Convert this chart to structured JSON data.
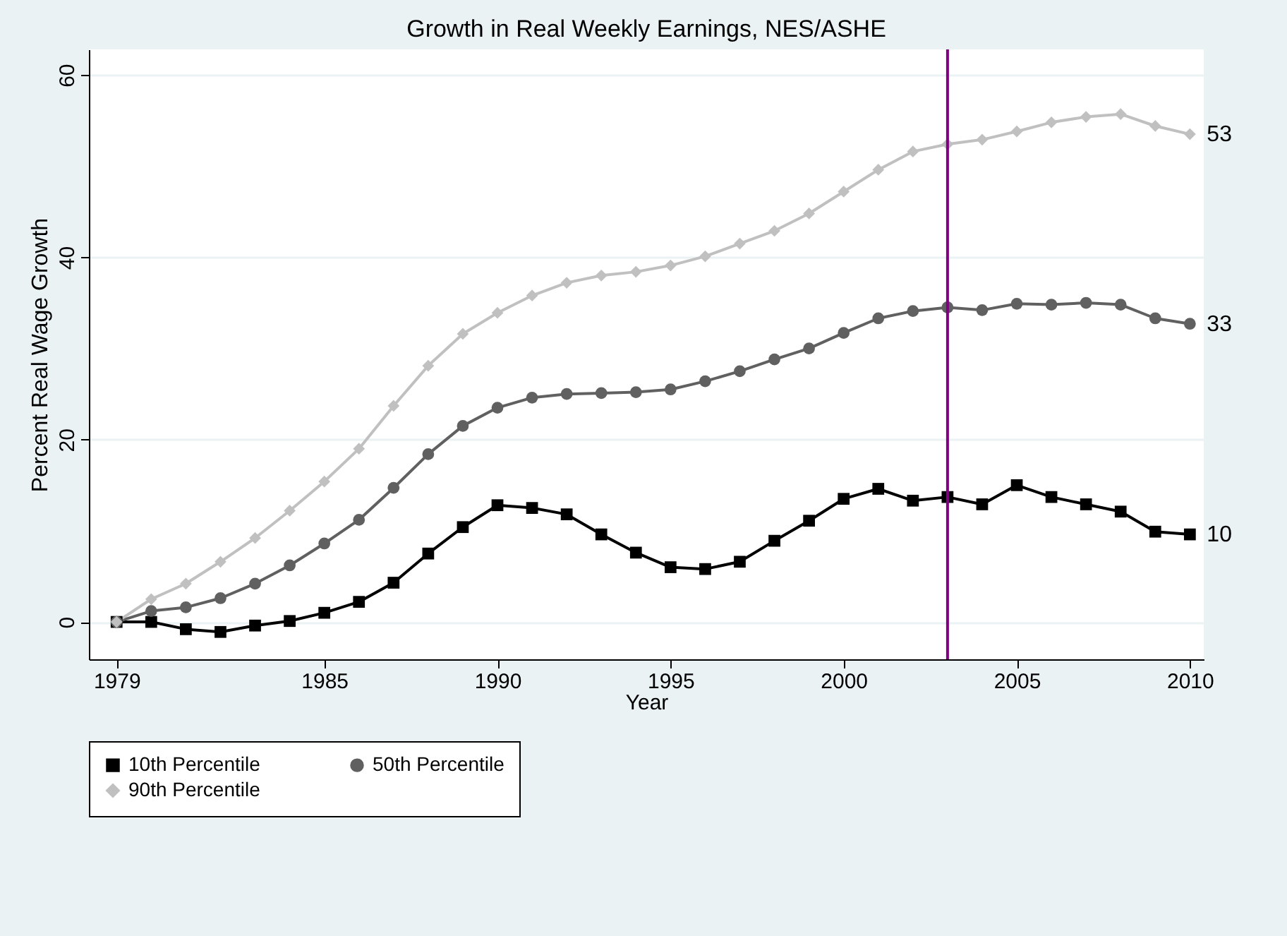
{
  "chart_data": {
    "type": "line",
    "title": "Growth in Real Weekly Earnings, NES/ASHE",
    "xlabel": "Year",
    "ylabel": "Percent Real Wage Growth",
    "x": [
      1979,
      1980,
      1981,
      1982,
      1983,
      1984,
      1985,
      1986,
      1987,
      1988,
      1989,
      1990,
      1991,
      1992,
      1993,
      1994,
      1995,
      1996,
      1997,
      1998,
      1999,
      2000,
      2001,
      2002,
      2003,
      2004,
      2005,
      2006,
      2007,
      2008,
      2009,
      2010
    ],
    "series": [
      {
        "name": "10th Percentile",
        "color": "#000000",
        "marker": "square",
        "values": [
          0,
          0,
          -0.8,
          -1.1,
          -0.4,
          0.1,
          1.0,
          2.2,
          4.3,
          7.5,
          10.4,
          12.8,
          12.5,
          11.8,
          9.6,
          7.6,
          6.0,
          5.8,
          6.6,
          8.9,
          11.1,
          13.5,
          14.6,
          13.3,
          13.7,
          12.9,
          15.0,
          13.7,
          12.9,
          12.1,
          9.9,
          9.6
        ],
        "value_labels": [
          null,
          null,
          null,
          null,
          null,
          null,
          null,
          null,
          null,
          null,
          null,
          null,
          null,
          null,
          null,
          null,
          null,
          null,
          null,
          null,
          null,
          null,
          null,
          null,
          null,
          null,
          null,
          null,
          null,
          null,
          null,
          "10"
        ]
      },
      {
        "name": "50th Percentile",
        "color": "#606060",
        "marker": "circle",
        "values": [
          0,
          1.2,
          1.6,
          2.6,
          4.2,
          6.2,
          8.6,
          11.2,
          14.7,
          18.4,
          21.5,
          23.5,
          24.6,
          25.0,
          25.1,
          25.2,
          25.5,
          26.4,
          27.5,
          28.8,
          30.0,
          31.7,
          33.3,
          34.1,
          34.5,
          34.2,
          34.9,
          34.8,
          35.0,
          34.8,
          33.3,
          32.7
        ],
        "value_labels": [
          null,
          null,
          null,
          null,
          null,
          null,
          null,
          null,
          null,
          null,
          null,
          null,
          null,
          null,
          null,
          null,
          null,
          null,
          null,
          null,
          null,
          null,
          null,
          null,
          null,
          null,
          null,
          null,
          null,
          null,
          null,
          "33"
        ]
      },
      {
        "name": "90th Percentile",
        "color": "#c0c0c0",
        "marker": "diamond",
        "values": [
          0,
          2.5,
          4.2,
          6.6,
          9.2,
          12.2,
          15.4,
          19.0,
          23.7,
          28.1,
          31.6,
          33.9,
          35.8,
          37.2,
          38.0,
          38.4,
          39.1,
          40.1,
          41.5,
          42.9,
          44.8,
          47.2,
          49.6,
          51.6,
          52.4,
          52.9,
          53.8,
          54.8,
          55.4,
          55.7,
          54.4,
          53.5
        ],
        "value_labels": [
          null,
          null,
          null,
          null,
          null,
          null,
          null,
          null,
          null,
          null,
          null,
          null,
          null,
          null,
          null,
          null,
          null,
          null,
          null,
          null,
          null,
          null,
          null,
          null,
          null,
          null,
          null,
          null,
          null,
          null,
          null,
          "53"
        ]
      }
    ],
    "xlim": [
      1978.2,
      2010.4
    ],
    "xticks": [
      1979,
      1985,
      1990,
      1995,
      2000,
      2005,
      2010
    ],
    "ylim": [
      -4.1,
      62.8
    ],
    "yticks": [
      0,
      20,
      40,
      60
    ],
    "grid": "y",
    "legend": "bottom",
    "line_style": "solid",
    "ref_lines": [
      {
        "axis": "x",
        "value": 2003,
        "color": "#800080"
      }
    ]
  }
}
